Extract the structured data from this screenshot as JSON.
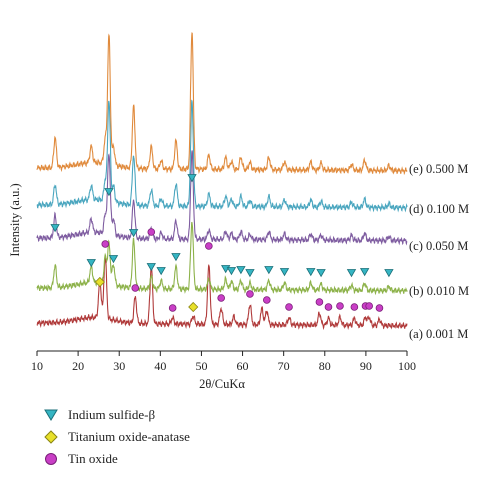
{
  "chart_data": {
    "type": "line",
    "xlabel": "2θ/CuKα",
    "ylabel": "Intensity (a.u.)",
    "xlim": [
      10,
      100
    ],
    "x_ticks": [
      10,
      20,
      30,
      40,
      50,
      60,
      70,
      80,
      90,
      100
    ],
    "grid": false,
    "legend_position": "bottom-left",
    "series": [
      {
        "name": "(a) 0.001 M",
        "color": "#b03a3a",
        "peaks": [
          {
            "x": 25.3,
            "h": 38
          },
          {
            "x": 26.6,
            "h": 62
          },
          {
            "x": 33.9,
            "h": 26
          },
          {
            "x": 37.8,
            "h": 58
          },
          {
            "x": 43.0,
            "h": 6
          },
          {
            "x": 48.0,
            "h": 8
          },
          {
            "x": 51.8,
            "h": 58
          },
          {
            "x": 54.8,
            "h": 16
          },
          {
            "x": 57.9,
            "h": 8
          },
          {
            "x": 61.8,
            "h": 20
          },
          {
            "x": 64.7,
            "h": 16
          },
          {
            "x": 65.9,
            "h": 14
          },
          {
            "x": 71.3,
            "h": 7
          },
          {
            "x": 78.7,
            "h": 12
          },
          {
            "x": 80.9,
            "h": 7
          },
          {
            "x": 83.7,
            "h": 8
          },
          {
            "x": 87.2,
            "h": 7
          },
          {
            "x": 89.9,
            "h": 8
          },
          {
            "x": 90.8,
            "h": 8
          },
          {
            "x": 93.3,
            "h": 6
          }
        ]
      },
      {
        "name": "(b) 0.010 M",
        "color": "#8db24a",
        "peaks": [
          {
            "x": 14.4,
            "h": 22
          },
          {
            "x": 23.2,
            "h": 16
          },
          {
            "x": 26.6,
            "h": 26
          },
          {
            "x": 27.5,
            "h": 40
          },
          {
            "x": 28.6,
            "h": 20
          },
          {
            "x": 33.5,
            "h": 48
          },
          {
            "x": 37.8,
            "h": 12
          },
          {
            "x": 40.2,
            "h": 8
          },
          {
            "x": 43.8,
            "h": 22
          },
          {
            "x": 47.7,
            "h": 68
          },
          {
            "x": 51.8,
            "h": 10
          },
          {
            "x": 55.9,
            "h": 10
          },
          {
            "x": 57.3,
            "h": 8
          },
          {
            "x": 59.6,
            "h": 9
          },
          {
            "x": 61.8,
            "h": 6
          },
          {
            "x": 66.4,
            "h": 9
          },
          {
            "x": 70.2,
            "h": 7
          },
          {
            "x": 76.6,
            "h": 7
          },
          {
            "x": 79.1,
            "h": 6
          },
          {
            "x": 86.5,
            "h": 5
          },
          {
            "x": 89.7,
            "h": 7
          },
          {
            "x": 95.6,
            "h": 4
          }
        ]
      },
      {
        "name": "(c) 0.050 M",
        "color": "#7e5ca0",
        "peaks": [
          {
            "x": 14.4,
            "h": 22
          },
          {
            "x": 23.2,
            "h": 14
          },
          {
            "x": 26.6,
            "h": 18
          },
          {
            "x": 27.5,
            "h": 80
          },
          {
            "x": 28.6,
            "h": 16
          },
          {
            "x": 33.5,
            "h": 38
          },
          {
            "x": 37.8,
            "h": 10
          },
          {
            "x": 40.2,
            "h": 6
          },
          {
            "x": 43.8,
            "h": 18
          },
          {
            "x": 47.7,
            "h": 88
          },
          {
            "x": 51.8,
            "h": 9
          },
          {
            "x": 55.9,
            "h": 8
          },
          {
            "x": 57.3,
            "h": 6
          },
          {
            "x": 59.6,
            "h": 8
          },
          {
            "x": 61.8,
            "h": 5
          },
          {
            "x": 66.4,
            "h": 8
          },
          {
            "x": 70.2,
            "h": 6
          },
          {
            "x": 76.6,
            "h": 6
          },
          {
            "x": 79.1,
            "h": 5
          },
          {
            "x": 86.5,
            "h": 5
          },
          {
            "x": 89.7,
            "h": 7
          },
          {
            "x": 95.6,
            "h": 4
          }
        ]
      },
      {
        "name": "(d) 0.100 M",
        "color": "#4aa6bf",
        "peaks": [
          {
            "x": 14.4,
            "h": 20
          },
          {
            "x": 23.2,
            "h": 14
          },
          {
            "x": 26.6,
            "h": 20
          },
          {
            "x": 27.5,
            "h": 100
          },
          {
            "x": 28.6,
            "h": 16
          },
          {
            "x": 33.5,
            "h": 50
          },
          {
            "x": 37.8,
            "h": 16
          },
          {
            "x": 40.2,
            "h": 7
          },
          {
            "x": 43.8,
            "h": 22
          },
          {
            "x": 47.7,
            "h": 105
          },
          {
            "x": 51.8,
            "h": 12
          },
          {
            "x": 55.9,
            "h": 10
          },
          {
            "x": 57.3,
            "h": 7
          },
          {
            "x": 59.6,
            "h": 10
          },
          {
            "x": 61.8,
            "h": 6
          },
          {
            "x": 66.4,
            "h": 10
          },
          {
            "x": 70.2,
            "h": 7
          },
          {
            "x": 76.6,
            "h": 7
          },
          {
            "x": 79.1,
            "h": 6
          },
          {
            "x": 86.5,
            "h": 5
          },
          {
            "x": 89.7,
            "h": 8
          },
          {
            "x": 95.6,
            "h": 4
          }
        ]
      },
      {
        "name": "(e) 0.500 M",
        "color": "#e08a3c",
        "peaks": [
          {
            "x": 14.4,
            "h": 30
          },
          {
            "x": 23.2,
            "h": 16
          },
          {
            "x": 26.6,
            "h": 24
          },
          {
            "x": 27.5,
            "h": 128
          },
          {
            "x": 28.6,
            "h": 18
          },
          {
            "x": 33.5,
            "h": 62
          },
          {
            "x": 37.8,
            "h": 22
          },
          {
            "x": 40.2,
            "h": 8
          },
          {
            "x": 43.8,
            "h": 28
          },
          {
            "x": 47.7,
            "h": 138
          },
          {
            "x": 51.8,
            "h": 14
          },
          {
            "x": 55.9,
            "h": 12
          },
          {
            "x": 57.3,
            "h": 8
          },
          {
            "x": 59.6,
            "h": 12
          },
          {
            "x": 61.8,
            "h": 7
          },
          {
            "x": 66.4,
            "h": 12
          },
          {
            "x": 70.2,
            "h": 8
          },
          {
            "x": 76.6,
            "h": 8
          },
          {
            "x": 79.1,
            "h": 7
          },
          {
            "x": 86.5,
            "h": 6
          },
          {
            "x": 89.7,
            "h": 10
          },
          {
            "x": 95.6,
            "h": 5
          }
        ]
      }
    ],
    "markers": {
      "indium_sulfide_beta": [
        14.4,
        23.2,
        27.5,
        28.6,
        33.5,
        37.8,
        40.2,
        43.8,
        47.7,
        55.9,
        57.3,
        59.6,
        61.8,
        66.4,
        70.2,
        76.6,
        79.1,
        86.5,
        89.7,
        95.6
      ],
      "titanium_oxide_anatase": [
        25.3,
        48.0
      ],
      "tin_oxide": [
        26.6,
        33.9,
        37.8,
        43.0,
        51.8,
        54.8,
        61.8,
        65.9,
        71.3,
        78.7,
        80.9,
        83.7,
        87.2,
        89.9,
        90.8,
        93.3
      ]
    },
    "legend": [
      {
        "label": "Indium sulfide-β",
        "symbol": "triangle-down",
        "color": "#35b5c3"
      },
      {
        "label": "Titanium oxide-anatase",
        "symbol": "diamond",
        "color": "#e8e02a"
      },
      {
        "label": "Tin oxide",
        "symbol": "circle",
        "color": "#c93fc6"
      }
    ]
  }
}
